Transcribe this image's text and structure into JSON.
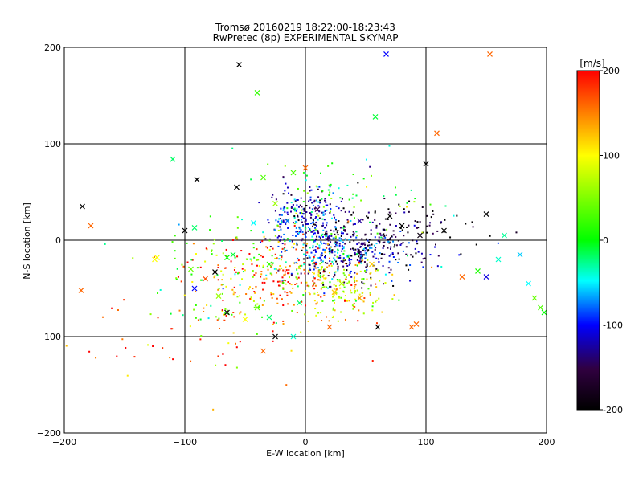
{
  "chart_data": {
    "type": "scatter",
    "title": "Tromsø 20160219 18:22:00-18:23:43",
    "subtitle": "RwPretec (8p) EXPERIMENTAL SKYMAP",
    "xlabel": "E-W location [km]",
    "ylabel": "N-S location [km]",
    "xlim": [
      -200,
      200
    ],
    "ylim": [
      -200,
      200
    ],
    "xticks": [
      "-200",
      "-100",
      "0",
      "100",
      "200"
    ],
    "yticks": [
      "-200",
      "-100",
      "0",
      "100",
      "200"
    ],
    "grid": true,
    "colorbar": {
      "label": "[m/s]",
      "range": [
        -200,
        200
      ],
      "ticks": [
        "200",
        "100",
        "0",
        "-100",
        "-200"
      ],
      "colormap": [
        "#ff0000",
        "#ffff00",
        "#00ff00",
        "#00ffff",
        "#0000ff",
        "#200030",
        "#000000"
      ]
    },
    "series": [
      {
        "marker": "dot",
        "clusters": [
          {
            "cx": 0,
            "cy": 25,
            "sx": 15,
            "sy": 15,
            "n": 220,
            "v": -120
          },
          {
            "cx": 45,
            "cy": -10,
            "sx": 25,
            "sy": 15,
            "n": 260,
            "v": -150
          },
          {
            "cx": 15,
            "cy": -10,
            "sx": 20,
            "sy": 15,
            "n": 180,
            "v": -80
          },
          {
            "cx": -20,
            "cy": -35,
            "sx": 35,
            "sy": 20,
            "n": 220,
            "v": 160
          },
          {
            "cx": 30,
            "cy": -50,
            "sx": 20,
            "sy": 15,
            "n": 150,
            "v": 80
          },
          {
            "cx": -60,
            "cy": -40,
            "sx": 35,
            "sy": 30,
            "n": 120,
            "v": 40
          },
          {
            "cx": 20,
            "cy": 40,
            "sx": 40,
            "sy": 25,
            "n": 80,
            "v": 20
          },
          {
            "cx": -80,
            "cy": -90,
            "sx": 50,
            "sy": 30,
            "n": 60,
            "v": 170
          },
          {
            "cx": 70,
            "cy": 10,
            "sx": 40,
            "sy": 20,
            "n": 90,
            "v": -190
          }
        ]
      },
      {
        "marker": "x",
        "points": [
          [
            -55,
            182,
            -200
          ],
          [
            67,
            193,
            -100
          ],
          [
            153,
            193,
            160
          ],
          [
            -40,
            153,
            20
          ],
          [
            58,
            128,
            -10
          ],
          [
            109,
            111,
            160
          ],
          [
            -110,
            84,
            -20
          ],
          [
            -185,
            35,
            -200
          ],
          [
            -178,
            15,
            160
          ],
          [
            -186,
            -52,
            160
          ],
          [
            -123,
            -18,
            100
          ],
          [
            -92,
            13,
            -20
          ],
          [
            100,
            79,
            -200
          ],
          [
            -90,
            63,
            -200
          ],
          [
            -57,
            55,
            -200
          ],
          [
            -35,
            65,
            30
          ],
          [
            -25,
            38,
            60
          ],
          [
            10,
            32,
            -150
          ],
          [
            45,
            20,
            -130
          ],
          [
            70,
            25,
            -200
          ],
          [
            80,
            15,
            -200
          ],
          [
            95,
            5,
            -190
          ],
          [
            115,
            10,
            -200
          ],
          [
            150,
            27,
            -200
          ],
          [
            165,
            5,
            -30
          ],
          [
            160,
            -20,
            -40
          ],
          [
            178,
            -15,
            -60
          ],
          [
            185,
            -45,
            -50
          ],
          [
            190,
            -60,
            40
          ],
          [
            195,
            -70,
            30
          ],
          [
            198,
            -75,
            0
          ],
          [
            130,
            -38,
            160
          ],
          [
            150,
            -38,
            -110
          ],
          [
            143,
            -32,
            10
          ],
          [
            -40,
            -70,
            40
          ],
          [
            -50,
            -82,
            100
          ],
          [
            -65,
            -75,
            -200
          ],
          [
            -83,
            -40,
            170
          ],
          [
            -92,
            -50,
            -100
          ],
          [
            -72,
            -58,
            60
          ],
          [
            -30,
            -80,
            -20
          ],
          [
            -35,
            -115,
            160
          ],
          [
            -10,
            -100,
            -40
          ],
          [
            20,
            -90,
            160
          ],
          [
            30,
            -45,
            70
          ],
          [
            45,
            -60,
            140
          ],
          [
            60,
            -90,
            -200
          ],
          [
            92,
            -87,
            160
          ],
          [
            88,
            -90,
            160
          ],
          [
            -95,
            -30,
            40
          ],
          [
            0,
            75,
            160
          ],
          [
            -15,
            20,
            -80
          ],
          [
            -30,
            -25,
            20
          ],
          [
            -60,
            -15,
            -10
          ],
          [
            -25,
            -100,
            -200
          ],
          [
            -5,
            -65,
            -20
          ],
          [
            24,
            -54,
            120
          ],
          [
            -65,
            -18,
            0
          ],
          [
            -75,
            -33,
            -200
          ],
          [
            -100,
            10,
            -200
          ],
          [
            -125,
            -20,
            100
          ],
          [
            -10,
            70,
            30
          ],
          [
            -43,
            18,
            -50
          ],
          [
            55,
            -25,
            120
          ]
        ]
      }
    ]
  }
}
